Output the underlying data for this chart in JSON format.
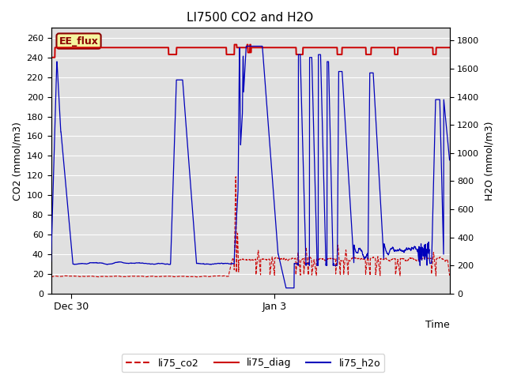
{
  "title": "LI7500 CO2 and H2O",
  "xlabel": "Time",
  "ylabel_left": "CO2 (mmol/m3)",
  "ylabel_right": "H2O (mmol/m3)",
  "ylim_left": [
    0,
    270
  ],
  "ylim_right": [
    0,
    1890
  ],
  "color_co2": "#cc0000",
  "color_diag": "#cc0000",
  "color_h2o": "#0000bb",
  "bg_color": "#e0e0e0",
  "grid_color": "#ffffff",
  "annotation_text": "EE_flux",
  "n_points": 2000
}
